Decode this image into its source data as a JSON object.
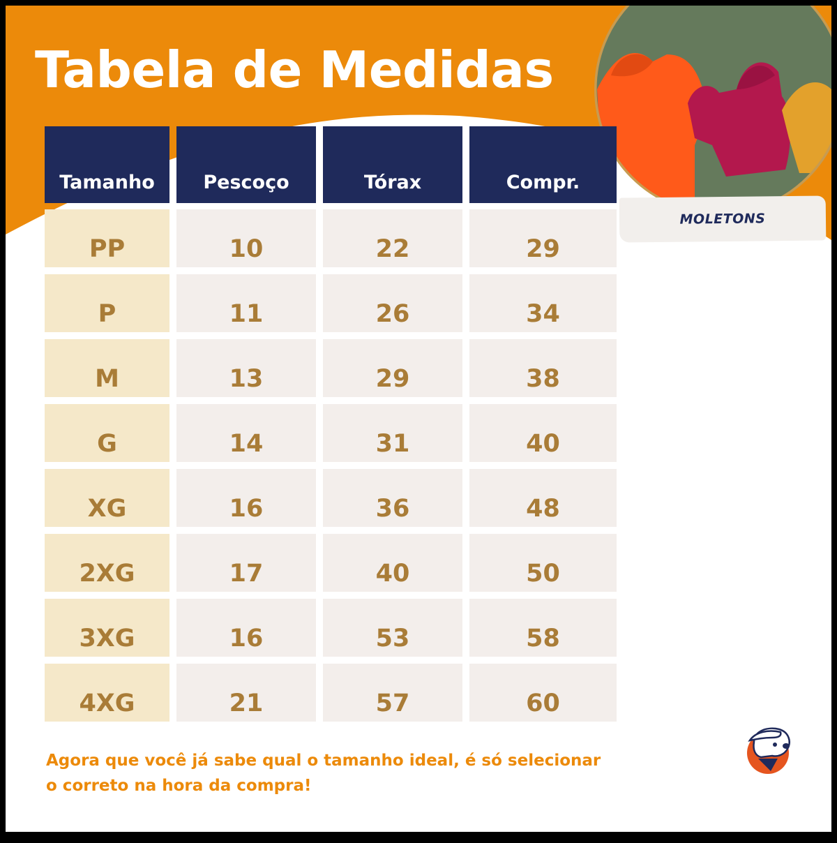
{
  "title": "Tabela de Medidas",
  "photo": {
    "label": "MOLETONS"
  },
  "table": {
    "headers": [
      "Tamanho",
      "Pescoço",
      "Tórax",
      "Compr."
    ],
    "rows": [
      [
        "PP",
        "10",
        "22",
        "29"
      ],
      [
        "P",
        "11",
        "26",
        "34"
      ],
      [
        "M",
        "13",
        "29",
        "38"
      ],
      [
        "G",
        "14",
        "31",
        "40"
      ],
      [
        "XG",
        "16",
        "36",
        "48"
      ],
      [
        "2XG",
        "17",
        "40",
        "50"
      ],
      [
        "3XG",
        "16",
        "53",
        "58"
      ],
      [
        "4XG",
        "21",
        "57",
        "60"
      ]
    ]
  },
  "footer": {
    "line1": "Agora que você já sabe qual o tamanho ideal, é só selecionar",
    "line2": "o correto na hora da compra!"
  },
  "colors": {
    "orange": "#ec8a0a",
    "navy": "#1f2a5b",
    "gold_text": "#a97c37",
    "size_cell_bg": "#f5e8c9",
    "value_cell_bg": "#f3eeeb"
  }
}
